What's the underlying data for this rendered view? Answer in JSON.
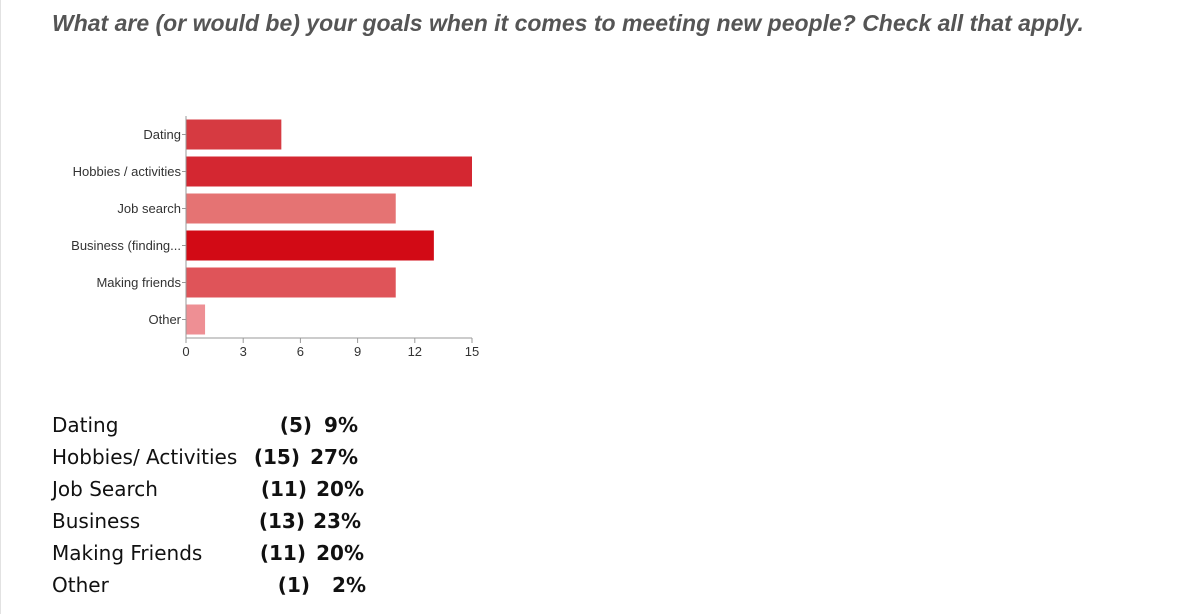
{
  "title": "What are (or would be) your goals when it comes to meeting new people? Check all that apply.",
  "chart_data": {
    "type": "bar",
    "orientation": "horizontal",
    "categories": [
      "Dating",
      "Hobbies / activities",
      "Job search",
      "Business (finding...",
      "Making friends",
      "Other"
    ],
    "values": [
      5,
      15,
      11,
      13,
      11,
      1
    ],
    "colors": [
      "#d63a41",
      "#d42731",
      "#e57373",
      "#d20a15",
      "#df5459",
      "#ee8f94"
    ],
    "xlim": [
      0,
      15
    ],
    "xticks": [
      0,
      3,
      6,
      9,
      12,
      15
    ],
    "grid": false,
    "legend": "none"
  },
  "summary": [
    {
      "label": "Dating",
      "count": "(5)",
      "percent": "9%"
    },
    {
      "label": "Hobbies/ Activities",
      "count": "(15)",
      "percent": "27%"
    },
    {
      "label": "Job Search",
      "count": "(11)",
      "percent": "20%"
    },
    {
      "label": "Business",
      "count": "(13)",
      "percent": "23%"
    },
    {
      "label": "Making Friends",
      "count": "(11)",
      "percent": "20%"
    },
    {
      "label": "Other",
      "count": "(1)",
      "percent": "2%"
    }
  ]
}
